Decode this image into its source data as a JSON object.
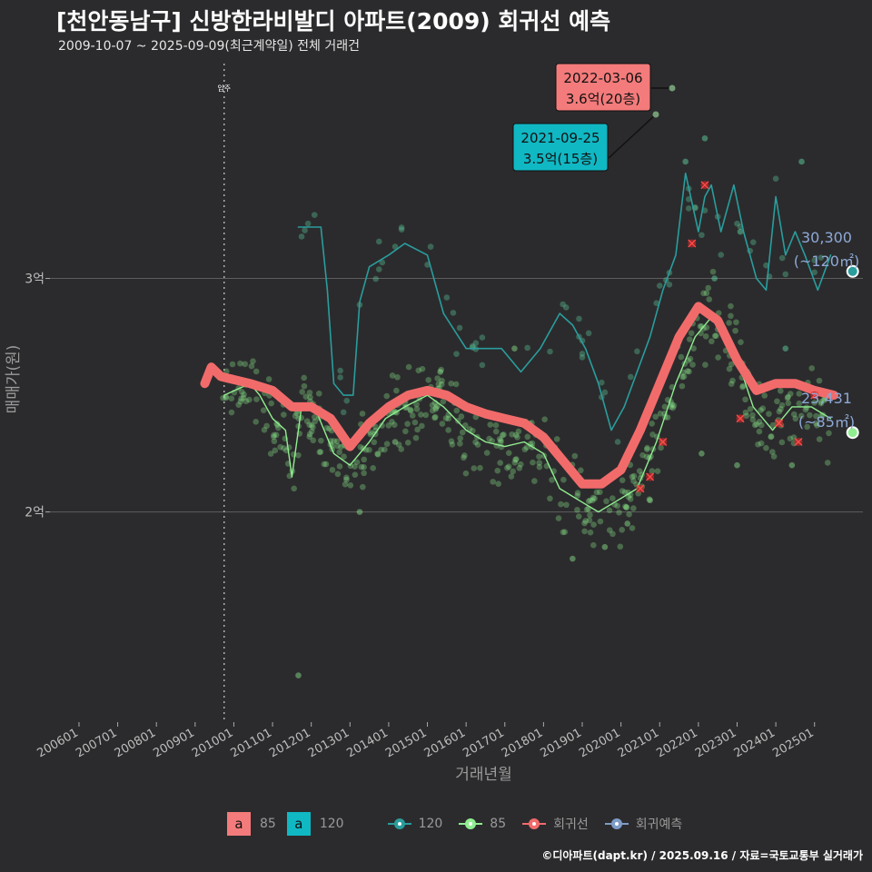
{
  "title": "[천안동남구] 신방한라비발디 아파트(2009) 회귀선 예측",
  "subtitle": "2009-10-07 ~ 2025-09-09(최근계약일) 전체 거래건",
  "credit": "©디아파트(dapt.kr) / 2025.09.16 / 자료=국토교통부 실거래가",
  "colors": {
    "s120": "#2a9d9d",
    "s85": "#90ee90",
    "reg": "#f26b6b",
    "pred": "#7f9cc7",
    "bg": "#2b2b2d"
  },
  "legend": {
    "fill": [
      {
        "key": "a",
        "label": "85",
        "color": "#f47b7b"
      },
      {
        "key": "a",
        "label": "120",
        "color": "#10b8c4"
      }
    ],
    "lines": [
      {
        "label": "120",
        "color": "#2a9d9d"
      },
      {
        "label": "85",
        "color": "#90ee90"
      },
      {
        "label": "회귀선",
        "color": "#f26b6b"
      },
      {
        "label": "회귀예측",
        "color": "#7f9cc7"
      }
    ]
  },
  "chart_data": {
    "type": "line",
    "xlabel": "거래년월",
    "ylabel": "매매가(원)",
    "x_range": [
      "2005-04",
      "2026-04"
    ],
    "ylim": [
      1.1,
      3.92
    ],
    "y_ticks": [
      {
        "value": 2,
        "label": "2억"
      },
      {
        "value": 3,
        "label": "3억"
      }
    ],
    "x_ticks": [
      "200601",
      "200701",
      "200801",
      "200901",
      "201001",
      "201101",
      "201201",
      "201301",
      "201401",
      "201501",
      "201601",
      "201701",
      "201801",
      "201901",
      "202001",
      "202101",
      "202201",
      "202301",
      "202401",
      "202501"
    ],
    "vline": {
      "date": "2009-10",
      "label": "입주"
    },
    "series": [
      {
        "name": "120",
        "color": "#2a9d9d",
        "points": [
          [
            "2011-09",
            3.22
          ],
          [
            "2012-04",
            3.22
          ],
          [
            "2012-06",
            2.95
          ],
          [
            "2012-08",
            2.55
          ],
          [
            "2012-11",
            2.5
          ],
          [
            "2013-02",
            2.5
          ],
          [
            "2013-04",
            2.9
          ],
          [
            "2013-07",
            3.05
          ],
          [
            "2014-01",
            3.1
          ],
          [
            "2014-06",
            3.15
          ],
          [
            "2015-01",
            3.1
          ],
          [
            "2015-06",
            2.85
          ],
          [
            "2016-01",
            2.7
          ],
          [
            "2016-07",
            2.7
          ],
          [
            "2016-12",
            2.7
          ],
          [
            "2017-06",
            2.6
          ],
          [
            "2017-12",
            2.7
          ],
          [
            "2018-06",
            2.85
          ],
          [
            "2018-10",
            2.8
          ],
          [
            "2019-02",
            2.7
          ],
          [
            "2019-06",
            2.55
          ],
          [
            "2019-10",
            2.35
          ],
          [
            "2020-02",
            2.45
          ],
          [
            "2020-06",
            2.6
          ],
          [
            "2020-10",
            2.75
          ],
          [
            "2021-02",
            2.95
          ],
          [
            "2021-06",
            3.1
          ],
          [
            "2021-09",
            3.45
          ],
          [
            "2022-01",
            3.2
          ],
          [
            "2022-03",
            3.35
          ],
          [
            "2022-05",
            3.4
          ],
          [
            "2022-08",
            3.2
          ],
          [
            "2022-12",
            3.4
          ],
          [
            "2023-03",
            3.2
          ],
          [
            "2023-07",
            3.0
          ],
          [
            "2023-10",
            2.95
          ],
          [
            "2024-01",
            3.35
          ],
          [
            "2024-04",
            3.1
          ],
          [
            "2024-07",
            3.2
          ],
          [
            "2024-10",
            3.1
          ],
          [
            "2025-02",
            2.95
          ],
          [
            "2025-06",
            3.1
          ]
        ]
      },
      {
        "name": "85",
        "color": "#90ee90",
        "points": [
          [
            "2009-10",
            2.5
          ],
          [
            "2010-06",
            2.55
          ],
          [
            "2010-09",
            2.5
          ],
          [
            "2011-01",
            2.4
          ],
          [
            "2011-05",
            2.35
          ],
          [
            "2011-07",
            2.15
          ],
          [
            "2011-10",
            2.45
          ],
          [
            "2012-02",
            2.45
          ],
          [
            "2012-08",
            2.25
          ],
          [
            "2013-01",
            2.2
          ],
          [
            "2013-07",
            2.3
          ],
          [
            "2013-12",
            2.4
          ],
          [
            "2014-06",
            2.45
          ],
          [
            "2015-01",
            2.5
          ],
          [
            "2015-06",
            2.45
          ],
          [
            "2016-01",
            2.35
          ],
          [
            "2016-07",
            2.3
          ],
          [
            "2017-01",
            2.28
          ],
          [
            "2017-07",
            2.3
          ],
          [
            "2018-01",
            2.25
          ],
          [
            "2018-06",
            2.1
          ],
          [
            "2018-12",
            2.05
          ],
          [
            "2019-06",
            2.0
          ],
          [
            "2019-12",
            2.05
          ],
          [
            "2020-06",
            2.1
          ],
          [
            "2020-12",
            2.3
          ],
          [
            "2021-06",
            2.55
          ],
          [
            "2021-12",
            2.75
          ],
          [
            "2022-06",
            2.85
          ],
          [
            "2022-12",
            2.7
          ],
          [
            "2023-06",
            2.45
          ],
          [
            "2023-12",
            2.35
          ],
          [
            "2024-06",
            2.45
          ],
          [
            "2024-12",
            2.45
          ],
          [
            "2025-06",
            2.4
          ]
        ]
      },
      {
        "name": "회귀선",
        "color": "#f26b6b",
        "points": [
          [
            "2009-04",
            2.55
          ],
          [
            "2009-06",
            2.62
          ],
          [
            "2009-09",
            2.58
          ],
          [
            "2010-06",
            2.55
          ],
          [
            "2011-01",
            2.52
          ],
          [
            "2011-07",
            2.45
          ],
          [
            "2012-01",
            2.45
          ],
          [
            "2012-07",
            2.4
          ],
          [
            "2013-01",
            2.28
          ],
          [
            "2013-07",
            2.38
          ],
          [
            "2014-01",
            2.45
          ],
          [
            "2014-07",
            2.5
          ],
          [
            "2015-01",
            2.52
          ],
          [
            "2015-07",
            2.5
          ],
          [
            "2016-01",
            2.45
          ],
          [
            "2016-07",
            2.42
          ],
          [
            "2017-01",
            2.4
          ],
          [
            "2017-07",
            2.38
          ],
          [
            "2018-01",
            2.32
          ],
          [
            "2018-07",
            2.22
          ],
          [
            "2019-01",
            2.12
          ],
          [
            "2019-07",
            2.12
          ],
          [
            "2020-01",
            2.18
          ],
          [
            "2020-07",
            2.35
          ],
          [
            "2021-01",
            2.55
          ],
          [
            "2021-07",
            2.75
          ],
          [
            "2022-01",
            2.88
          ],
          [
            "2022-07",
            2.82
          ],
          [
            "2023-01",
            2.65
          ],
          [
            "2023-07",
            2.52
          ],
          [
            "2024-01",
            2.55
          ],
          [
            "2024-07",
            2.55
          ],
          [
            "2025-01",
            2.52
          ],
          [
            "2025-07",
            2.5
          ]
        ]
      }
    ],
    "scatter_120": [
      [
        "2021-09",
        3.5
      ],
      [
        "2022-03",
        3.6
      ],
      [
        "2022-06",
        3.0
      ],
      [
        "2023-02",
        3.2
      ],
      [
        "2024-09",
        3.5
      ],
      [
        "2024-04",
        2.7
      ]
    ],
    "scatter_85": [
      [
        "2011-09",
        1.3
      ],
      [
        "2018-10",
        1.8
      ],
      [
        "2019-08",
        1.85
      ],
      [
        "2020-03",
        1.95
      ],
      [
        "2014-03",
        2.3
      ],
      [
        "2015-05",
        2.6
      ],
      [
        "2013-04",
        2.0
      ],
      [
        "2017-04",
        2.7
      ],
      [
        "2020-10",
        2.05
      ],
      [
        "2022-02",
        2.25
      ],
      [
        "2023-01",
        2.2
      ],
      [
        "2024-06",
        2.2
      ]
    ],
    "regression_cross": [
      [
        "2020-07",
        2.1
      ],
      [
        "2020-10",
        2.15
      ],
      [
        "2021-02",
        2.3
      ],
      [
        "2021-11",
        3.15
      ],
      [
        "2022-03",
        3.4
      ],
      [
        "2023-02",
        2.4
      ],
      [
        "2024-02",
        2.38
      ],
      [
        "2024-08",
        2.3
      ],
      [
        "2025-01",
        2.5
      ]
    ],
    "annotations": [
      {
        "date": "2022-03-06",
        "text": "3.6억(20층)",
        "color": "#f47b7b",
        "at": [
          "2022-03",
          3.6
        ]
      },
      {
        "date": "2021-09-25",
        "text": "3.5억(15층)",
        "color": "#10b8c4",
        "at": [
          "2021-09",
          3.5
        ]
      }
    ],
    "predictions": [
      {
        "value": "30,300",
        "label": "(~120㎡)",
        "at": [
          "2025-10",
          3.03
        ],
        "color": "#2a9d9d"
      },
      {
        "value": "23,431",
        "label": "(~85㎡)",
        "at": [
          "2025-10",
          2.34
        ],
        "color": "#90ee90"
      }
    ]
  }
}
